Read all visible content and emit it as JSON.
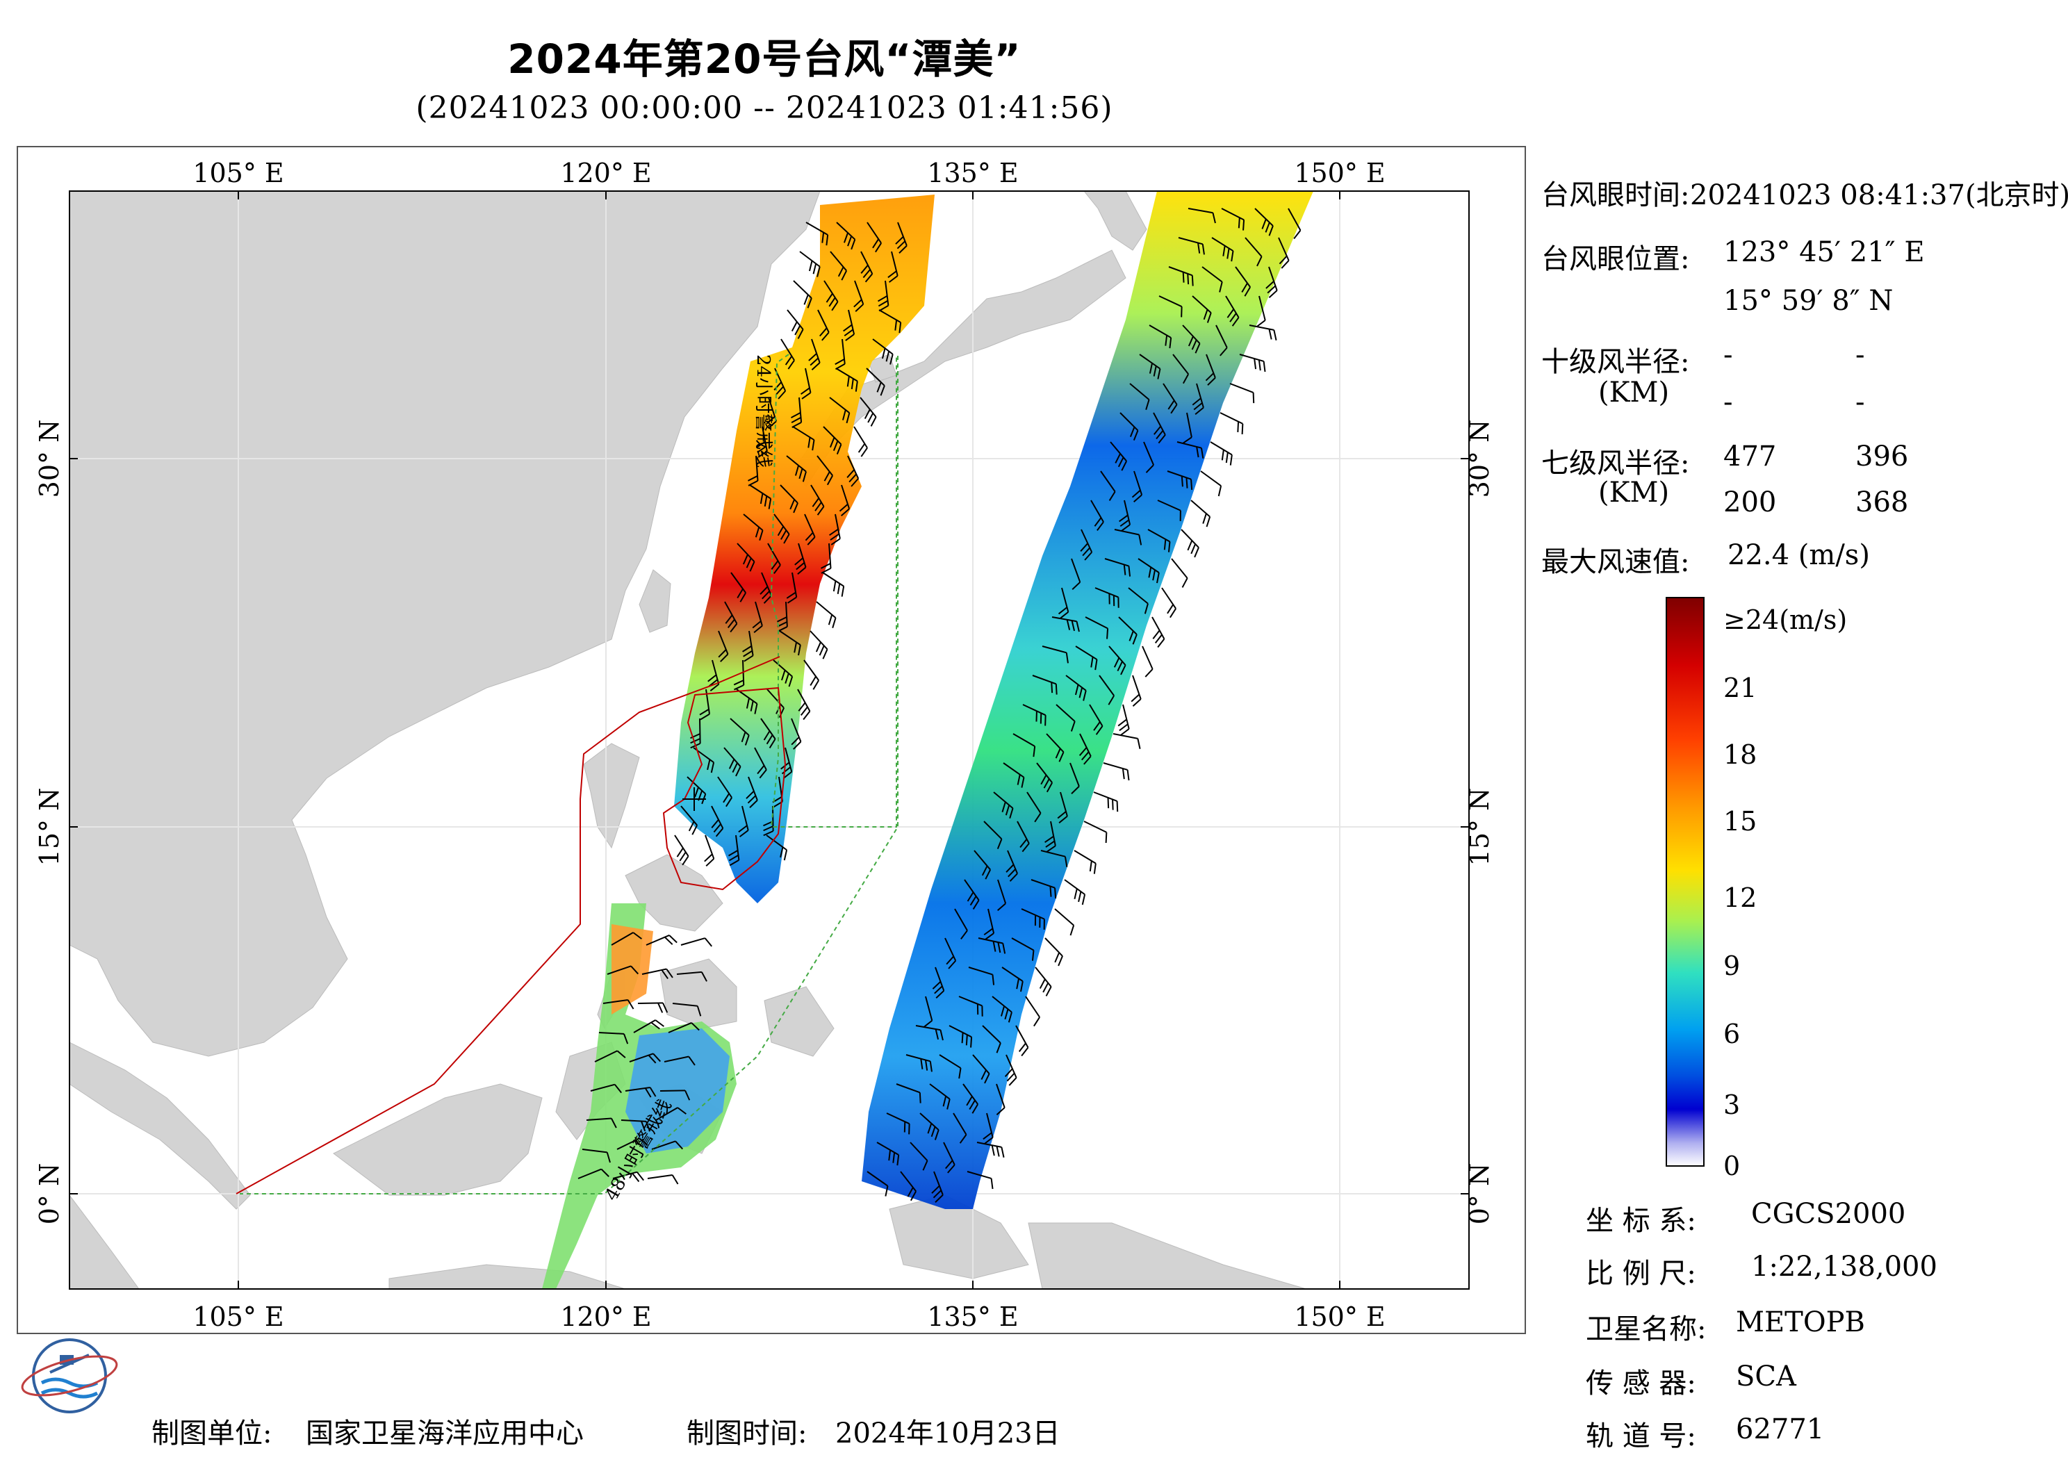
{
  "title": "2024年第20号台风“潭美”",
  "subtitle": "(20241023 00:00:00 -- 20241023 01:41:56)",
  "map": {
    "lon_labels": [
      "105° E",
      "120° E",
      "135° E",
      "150° E"
    ],
    "lat_labels": [
      "30° N",
      "15° N",
      "0° N"
    ],
    "warning_24h": "24小时警戒线",
    "warning_48h": "48小时警戒线",
    "colors": {
      "land": "#d3d3d3",
      "sea": "#ffffff",
      "line_24h": "#c00000",
      "line_48h": "#33aa33"
    }
  },
  "info": {
    "eye_time_label": "台风眼时间:",
    "eye_time_value": "20241023 08:41:37(北京时)",
    "eye_pos_label": "台风眼位置:",
    "eye_lon": "123° 45′ 21″ E",
    "eye_lat": "15° 59′ 8″ N",
    "r10_label": "十级风半径:",
    "r10_unit": "(KM)",
    "r10_values": [
      "-",
      "-",
      "-",
      "-"
    ],
    "r7_label": "七级风半径:",
    "r7_unit": "(KM)",
    "r7_values": [
      "477",
      "396",
      "200",
      "368"
    ],
    "max_wind_label": "最大风速值:",
    "max_wind_value": "22.4  (m/s)"
  },
  "colorbar": {
    "labels": [
      "≥24(m/s)",
      "21",
      "18",
      "15",
      "12",
      "9",
      "6",
      "3",
      "0"
    ],
    "stops": [
      "#7f0000",
      "#d40000",
      "#ff4000",
      "#ff9a00",
      "#ffe000",
      "#a8f050",
      "#30e0c0",
      "#00a0f0",
      "#0050e0",
      "#0000d0",
      "#b0b0f0",
      "#ffffff"
    ]
  },
  "meta": {
    "crs_label": "坐 标 系:",
    "crs_value": "CGCS2000",
    "scale_label": "比 例 尺:",
    "scale_value": "1:22,138,000",
    "sat_label": "卫星名称:",
    "sat_value": "METOPB",
    "sensor_label": "传 感 器:",
    "sensor_value": "SCA",
    "orbit_label": "轨 道 号:",
    "orbit_value": "62771"
  },
  "footer": {
    "unit_label": "制图单位:",
    "unit_value": "国家卫星海洋应用中心",
    "time_label": "制图时间:",
    "time_value": "2024年10月23日"
  }
}
